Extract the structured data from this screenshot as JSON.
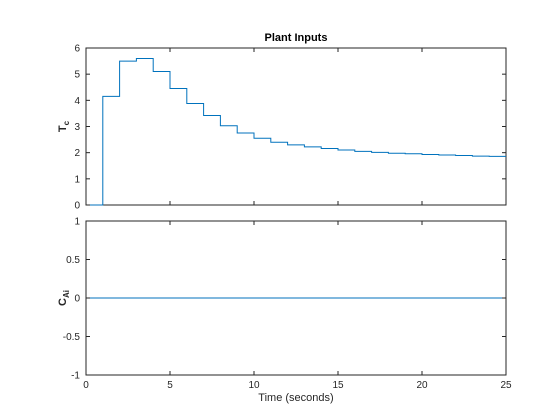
{
  "figure": {
    "background": "#ffffff",
    "axis_color": "#262626",
    "series_color": "#0072bd"
  },
  "chart_data": [
    {
      "type": "line",
      "step": true,
      "title": "Plant Inputs",
      "ylabel": {
        "main": "T",
        "sub": "c"
      },
      "xlabel": "",
      "xlim": [
        0,
        25
      ],
      "ylim": [
        0,
        6
      ],
      "xticks": [
        0,
        5,
        10,
        15,
        20,
        25
      ],
      "xtick_labels": [],
      "yticks": [
        0,
        1,
        2,
        3,
        4,
        5,
        6
      ],
      "ytick_labels": [
        "0",
        "1",
        "2",
        "3",
        "4",
        "5",
        "6"
      ],
      "grid": false,
      "series": [
        {
          "step_x": [
            0,
            1,
            2,
            3,
            4,
            5,
            6,
            7,
            8,
            9,
            10,
            11,
            12,
            13,
            14,
            15,
            16,
            17,
            18,
            19,
            20,
            21,
            22,
            23,
            24
          ],
          "values": [
            0,
            4.15,
            5.5,
            5.6,
            5.1,
            4.45,
            3.88,
            3.42,
            3.03,
            2.75,
            2.55,
            2.4,
            2.3,
            2.22,
            2.16,
            2.1,
            2.05,
            2.01,
            1.98,
            1.96,
            1.93,
            1.91,
            1.89,
            1.87,
            1.86
          ]
        }
      ]
    },
    {
      "type": "line",
      "step": true,
      "title": "",
      "ylabel": {
        "main": "C",
        "sub": "Ai"
      },
      "xlabel": "Time (seconds)",
      "xlim": [
        0,
        25
      ],
      "ylim": [
        -1,
        1
      ],
      "xticks": [
        0,
        5,
        10,
        15,
        20,
        25
      ],
      "xtick_labels": [
        "0",
        "5",
        "10",
        "15",
        "20",
        "25"
      ],
      "yticks": [
        -1,
        -0.5,
        0,
        0.5,
        1
      ],
      "ytick_labels": [
        "-1",
        "-0.5",
        "0",
        "0.5",
        "1"
      ],
      "grid": false,
      "series": [
        {
          "step_x": [
            0,
            25
          ],
          "values": [
            0,
            0
          ]
        }
      ]
    }
  ]
}
